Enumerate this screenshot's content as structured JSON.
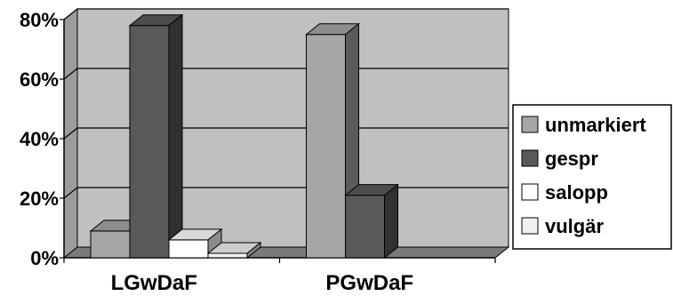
{
  "chart_data": {
    "type": "bar",
    "style": "3d-clustered",
    "categories": [
      "LGwDaF",
      "PGwDaF"
    ],
    "series": [
      {
        "name": "unmarkiert",
        "color": "#a6a6a6",
        "values": [
          9,
          75
        ]
      },
      {
        "name": "gespr",
        "color": "#595959",
        "values": [
          78,
          21
        ]
      },
      {
        "name": "salopp",
        "color": "#ffffff",
        "values": [
          6,
          0
        ]
      },
      {
        "name": "vulgär",
        "color": "#f0f0f0",
        "values": [
          1.5,
          0
        ]
      }
    ],
    "y_ticks": [
      "0%",
      "20%",
      "40%",
      "60%",
      "80%"
    ],
    "y_tick_values": [
      0,
      20,
      40,
      60,
      80
    ],
    "ylim": [
      0,
      80
    ],
    "grid": true,
    "legend_position": "right",
    "plot_background": "#c0c0c0"
  }
}
